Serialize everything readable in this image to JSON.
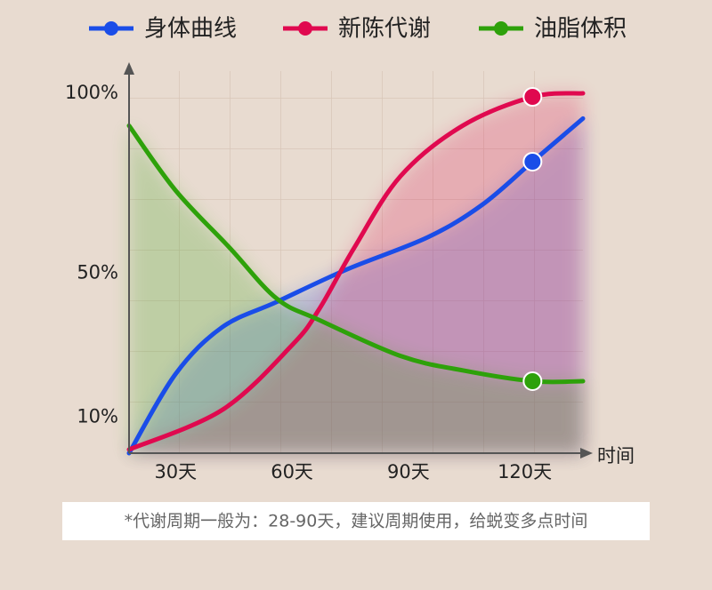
{
  "chart_data": {
    "type": "line",
    "legend": "top",
    "xlabel": "时间",
    "note": "*代谢周期一般为：28-90天，建议周期使用，给蜕变多点时间",
    "xlim": [
      18,
      135
    ],
    "xticks": [
      {
        "value": 30,
        "label": "30天"
      },
      {
        "value": 60,
        "label": "60天"
      },
      {
        "value": 90,
        "label": "90天"
      },
      {
        "value": 120,
        "label": "120天"
      }
    ],
    "ylim": [
      0,
      100
    ],
    "yticks": [
      {
        "value": 10,
        "label": "10%"
      },
      {
        "value": 50,
        "label": "50%"
      },
      {
        "value": 100,
        "label": "100%"
      }
    ],
    "series": [
      {
        "name": "身体曲线",
        "color": "#1a4de8",
        "x": [
          18,
          30,
          42,
          56,
          74,
          95,
          109,
          122,
          135
        ],
        "values": [
          0,
          22,
          35,
          42,
          51,
          60,
          69,
          81,
          93
        ]
      },
      {
        "name": "新陈代谢",
        "color": "#e0094f",
        "x": [
          18,
          42,
          60,
          67,
          76,
          88,
          104,
          122,
          135
        ],
        "values": [
          1,
          12,
          30,
          40,
          57,
          77,
          91,
          99,
          100
        ]
      },
      {
        "name": "油脂体积",
        "color": "#2ea10a",
        "x": [
          18,
          30,
          44,
          56,
          67,
          88,
          104,
          122,
          135
        ],
        "values": [
          91,
          73,
          57,
          43,
          37,
          27,
          23,
          20,
          20
        ]
      }
    ]
  }
}
